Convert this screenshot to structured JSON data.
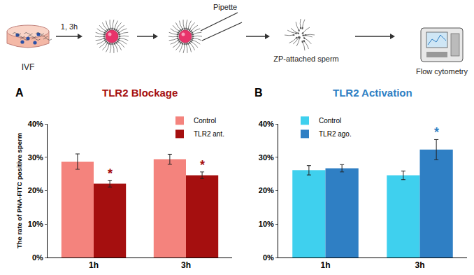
{
  "diagram": {
    "dish": "IVF",
    "incubation": "1, 3h",
    "pipette": "Pipette",
    "sperm": "ZP-attached sperm",
    "instrument": "Flow cytometry"
  },
  "chart_data": [
    {
      "type": "bar",
      "panel": "A",
      "title": "TLR2 Blockage",
      "y_label": "The rate of PNA-FITC positive sperm",
      "categories": [
        "1h",
        "3h"
      ],
      "series": [
        {
          "name": "Control",
          "color": "#f4837d",
          "values": [
            28.7,
            29.4
          ],
          "errors": [
            2.3,
            1.5
          ]
        },
        {
          "name": "TLR2 ant.",
          "color": "#a50f0f",
          "values": [
            22.1,
            24.6
          ],
          "errors": [
            1.0,
            1.0
          ]
        }
      ],
      "annotations": [
        {
          "text": "*",
          "category": "1h",
          "series": "TLR2 ant."
        },
        {
          "text": "*",
          "category": "3h",
          "series": "TLR2 ant."
        }
      ],
      "ylim": [
        0,
        40
      ],
      "yticks": [
        {
          "value": 0,
          "label": "0%"
        },
        {
          "value": 10,
          "label": "10%"
        },
        {
          "value": 20,
          "label": "20%"
        },
        {
          "value": 30,
          "label": "30%"
        },
        {
          "value": 40,
          "label": "40%"
        }
      ],
      "legend": "upper right",
      "grid": false
    },
    {
      "type": "bar",
      "panel": "B",
      "title": "TLR2 Activation",
      "categories": [
        "1h",
        "3h"
      ],
      "series": [
        {
          "name": "Control",
          "color": "#3fd0ee",
          "values": [
            26.1,
            24.6
          ],
          "errors": [
            1.4,
            1.3
          ]
        },
        {
          "name": "TLR2 ago.",
          "color": "#2f7fc4",
          "values": [
            26.7,
            32.3
          ],
          "errors": [
            1.1,
            3.0
          ]
        }
      ],
      "annotations": [
        {
          "text": "*",
          "category": "3h",
          "series": "TLR2 ago."
        }
      ],
      "ylim": [
        0,
        40
      ],
      "yticks": [
        {
          "value": 0,
          "label": "0%"
        },
        {
          "value": 10,
          "label": "10%"
        },
        {
          "value": 20,
          "label": "20%"
        },
        {
          "value": 30,
          "label": "30%"
        },
        {
          "value": 40,
          "label": "40%"
        }
      ],
      "legend": "upper left",
      "grid": false
    }
  ]
}
